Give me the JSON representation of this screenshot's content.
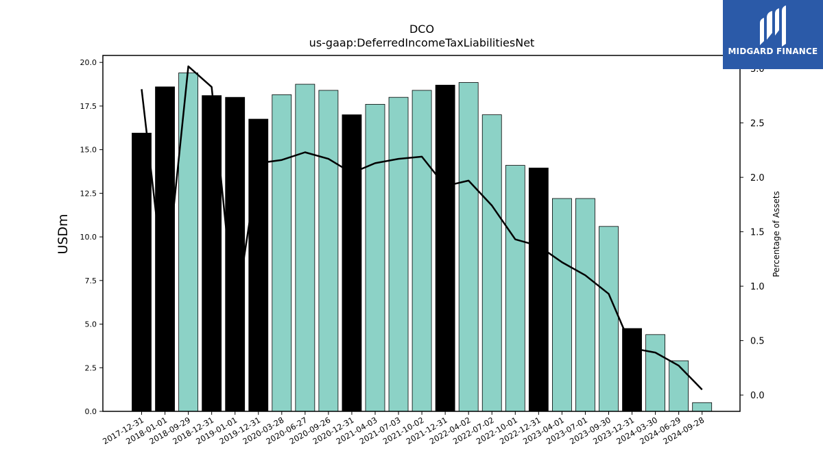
{
  "chart_data": {
    "type": "bar",
    "title": "DCO",
    "subtitle": "us-gaap:DeferredIncomeTaxLiabilitiesNet",
    "ylabel": "USDm",
    "y2label": "Percentage of Assets",
    "ylim": [
      0,
      20.4
    ],
    "y2lim": [
      -0.15,
      3.12
    ],
    "yticks": [
      "0.0",
      "2.5",
      "5.0",
      "7.5",
      "10.0",
      "12.5",
      "15.0",
      "17.5",
      "20.0"
    ],
    "y2ticks": [
      "0.0",
      "0.5",
      "1.0",
      "1.5",
      "2.0",
      "2.5",
      "3.0"
    ],
    "categories": [
      "2017-12-31",
      "2018-01-01",
      "2018-09-29",
      "2018-12-31",
      "2019-01-01",
      "2019-12-31",
      "2020-03-28",
      "2020-06-27",
      "2020-09-26",
      "2020-12-31",
      "2021-04-03",
      "2021-07-03",
      "2021-10-02",
      "2021-12-31",
      "2022-04-02",
      "2022-07-02",
      "2022-10-01",
      "2022-12-31",
      "2023-04-01",
      "2023-07-01",
      "2023-09-30",
      "2023-12-31",
      "2024-03-30",
      "2024-06-29",
      "2024-09-28"
    ],
    "series": [
      {
        "type": "bar",
        "values": [
          15.95,
          18.6,
          19.4,
          18.1,
          18.0,
          16.75,
          18.15,
          18.75,
          18.4,
          17.0,
          17.6,
          18.0,
          18.4,
          18.7,
          18.85,
          17.0,
          14.1,
          13.95,
          12.2,
          12.2,
          10.6,
          4.75,
          4.4,
          2.9,
          0.5
        ],
        "annual": [
          true,
          true,
          false,
          true,
          true,
          true,
          false,
          false,
          false,
          true,
          false,
          false,
          false,
          true,
          false,
          false,
          false,
          true,
          false,
          false,
          false,
          true,
          false,
          false,
          false
        ]
      },
      {
        "type": "line",
        "axis": "right",
        "values": [
          2.81,
          0.95,
          3.02,
          2.83,
          0.72,
          2.13,
          2.16,
          2.23,
          2.17,
          2.04,
          2.13,
          2.17,
          2.19,
          1.92,
          1.97,
          1.74,
          1.43,
          1.37,
          1.22,
          1.1,
          0.93,
          0.43,
          0.39,
          0.27,
          0.05
        ]
      }
    ],
    "colors": {
      "annual": "#000000",
      "quarterly": "#8cd2c6",
      "line": "#000000"
    }
  },
  "brand": {
    "name": "MIDGARD FINANCE",
    "bg": "#2b5aa8"
  }
}
